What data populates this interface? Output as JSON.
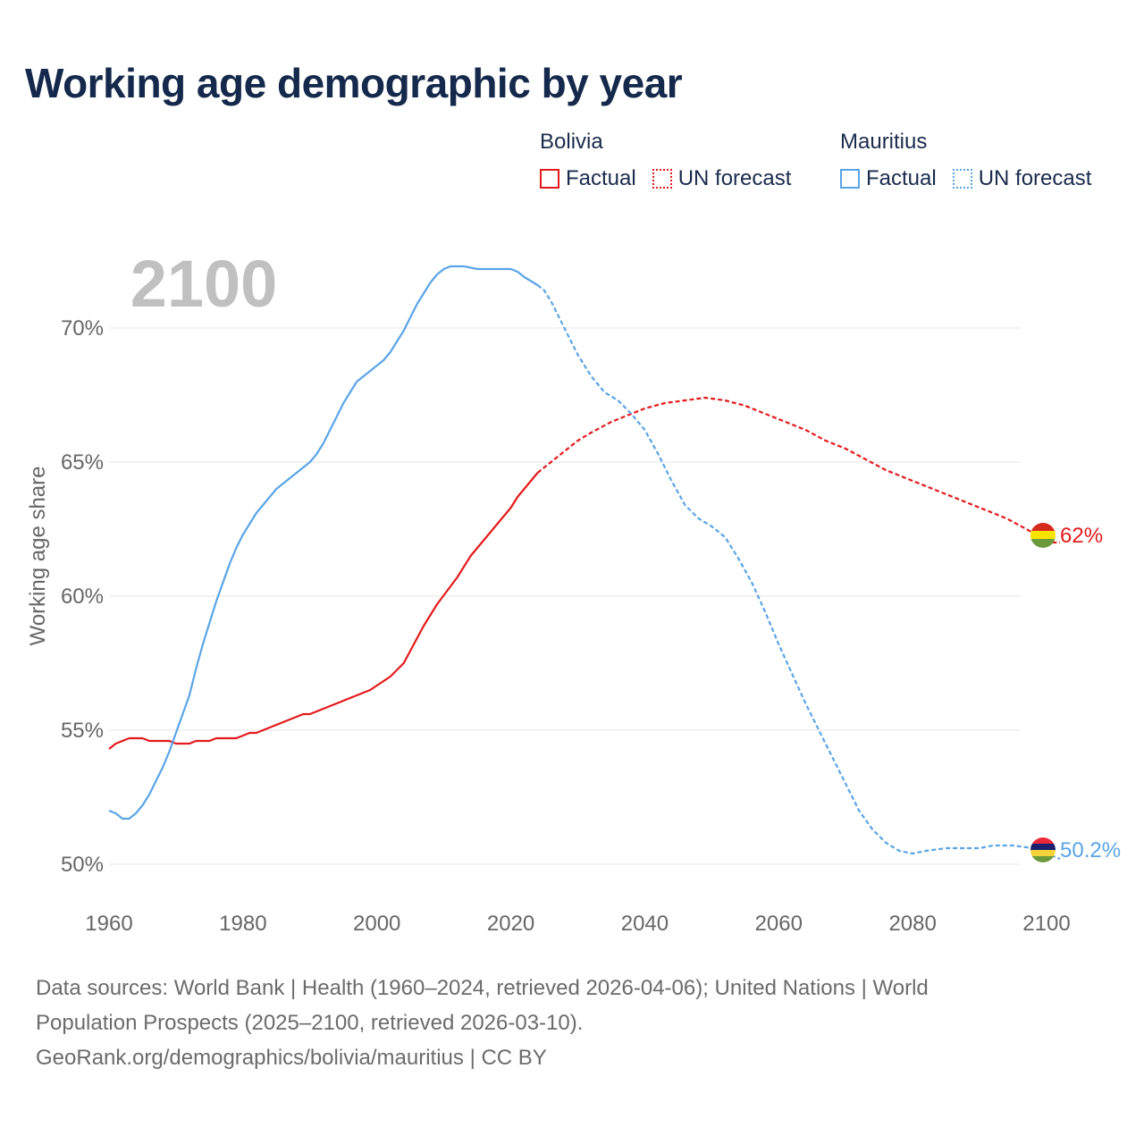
{
  "title": "Working age demographic by year",
  "legend": {
    "groups": [
      {
        "name": "Bolivia",
        "color": "#e31a1c",
        "factual_label": "Factual",
        "forecast_label": "UN forecast"
      },
      {
        "name": "Mauritius",
        "color": "#5aa5e6",
        "factual_label": "Factual",
        "forecast_label": "UN forecast"
      }
    ]
  },
  "chart_data": {
    "type": "line",
    "title": "Working age demographic by year",
    "xlabel": "",
    "ylabel": "Working age share",
    "year_watermark": "2100",
    "xlim": [
      1960,
      2100
    ],
    "ylim": [
      49.5,
      72.5
    ],
    "x_ticks": [
      1960,
      1980,
      2000,
      2020,
      2040,
      2060,
      2080,
      2100
    ],
    "x_tick_labels": [
      "1960",
      "1980",
      "2000",
      "2020",
      "2040",
      "2060",
      "2080",
      "2100"
    ],
    "y_ticks": [
      50,
      55,
      60,
      65,
      70
    ],
    "y_tick_labels": [
      "50%",
      "55%",
      "60%",
      "65%",
      "70%"
    ],
    "grid": true,
    "factual_end_year": 2024,
    "series": [
      {
        "name": "Bolivia",
        "color": "#e31a1c",
        "end_label": "62%",
        "flag": "bolivia",
        "points": [
          [
            1960,
            54.3
          ],
          [
            1961,
            54.5
          ],
          [
            1962,
            54.6
          ],
          [
            1963,
            54.7
          ],
          [
            1965,
            54.7
          ],
          [
            1966,
            54.6
          ],
          [
            1969,
            54.6
          ],
          [
            1970,
            54.5
          ],
          [
            1972,
            54.5
          ],
          [
            1973,
            54.6
          ],
          [
            1975,
            54.6
          ],
          [
            1976,
            54.7
          ],
          [
            1979,
            54.7
          ],
          [
            1981,
            54.9
          ],
          [
            1982,
            54.9
          ],
          [
            1985,
            55.2
          ],
          [
            1989,
            55.6
          ],
          [
            1990,
            55.6
          ],
          [
            1993,
            55.9
          ],
          [
            1996,
            56.2
          ],
          [
            1999,
            56.5
          ],
          [
            2002,
            57.0
          ],
          [
            2004,
            57.5
          ],
          [
            2007,
            58.9
          ],
          [
            2009,
            59.7
          ],
          [
            2012,
            60.7
          ],
          [
            2014,
            61.5
          ],
          [
            2017,
            62.4
          ],
          [
            2020,
            63.3
          ],
          [
            2021,
            63.7
          ],
          [
            2024,
            64.6
          ],
          [
            2026,
            65.0
          ],
          [
            2028,
            65.4
          ],
          [
            2030,
            65.8
          ],
          [
            2032,
            66.1
          ],
          [
            2035,
            66.5
          ],
          [
            2038,
            66.8
          ],
          [
            2040,
            67.0
          ],
          [
            2043,
            67.2
          ],
          [
            2046,
            67.3
          ],
          [
            2049,
            67.4
          ],
          [
            2052,
            67.3
          ],
          [
            2055,
            67.1
          ],
          [
            2058,
            66.8
          ],
          [
            2061,
            66.5
          ],
          [
            2064,
            66.2
          ],
          [
            2067,
            65.8
          ],
          [
            2070,
            65.5
          ],
          [
            2073,
            65.1
          ],
          [
            2076,
            64.7
          ],
          [
            2079,
            64.4
          ],
          [
            2082,
            64.1
          ],
          [
            2085,
            63.8
          ],
          [
            2088,
            63.5
          ],
          [
            2091,
            63.2
          ],
          [
            2094,
            62.9
          ],
          [
            2097,
            62.5
          ],
          [
            2099,
            62.2
          ],
          [
            2101,
            62.0
          ],
          [
            2102,
            62.0
          ]
        ]
      },
      {
        "name": "Mauritius",
        "color": "#5aa5e6",
        "end_label": "50.2%",
        "flag": "mauritius",
        "points": [
          [
            1960,
            52.0
          ],
          [
            1961,
            51.9
          ],
          [
            1962,
            51.7
          ],
          [
            1963,
            51.7
          ],
          [
            1964,
            51.9
          ],
          [
            1965,
            52.2
          ],
          [
            1966,
            52.6
          ],
          [
            1967,
            53.1
          ],
          [
            1968,
            53.6
          ],
          [
            1969,
            54.2
          ],
          [
            1970,
            54.9
          ],
          [
            1971,
            55.6
          ],
          [
            1972,
            56.3
          ],
          [
            1973,
            57.3
          ],
          [
            1974,
            58.2
          ],
          [
            1975,
            59.0
          ],
          [
            1976,
            59.8
          ],
          [
            1977,
            60.5
          ],
          [
            1978,
            61.2
          ],
          [
            1979,
            61.8
          ],
          [
            1980,
            62.3
          ],
          [
            1981,
            62.7
          ],
          [
            1982,
            63.1
          ],
          [
            1983,
            63.4
          ],
          [
            1984,
            63.7
          ],
          [
            1985,
            64.0
          ],
          [
            1986,
            64.2
          ],
          [
            1988,
            64.6
          ],
          [
            1990,
            65.0
          ],
          [
            1991,
            65.3
          ],
          [
            1992,
            65.7
          ],
          [
            1993,
            66.2
          ],
          [
            1994,
            66.7
          ],
          [
            1995,
            67.2
          ],
          [
            1996,
            67.6
          ],
          [
            1997,
            68.0
          ],
          [
            1999,
            68.4
          ],
          [
            2001,
            68.8
          ],
          [
            2002,
            69.1
          ],
          [
            2003,
            69.5
          ],
          [
            2004,
            69.9
          ],
          [
            2005,
            70.4
          ],
          [
            2006,
            70.9
          ],
          [
            2007,
            71.3
          ],
          [
            2008,
            71.7
          ],
          [
            2009,
            72.0
          ],
          [
            2010,
            72.2
          ],
          [
            2011,
            72.3
          ],
          [
            2012,
            72.3
          ],
          [
            2013,
            72.3
          ],
          [
            2015,
            72.2
          ],
          [
            2016,
            72.2
          ],
          [
            2020,
            72.2
          ],
          [
            2021,
            72.1
          ],
          [
            2022,
            71.9
          ],
          [
            2024,
            71.6
          ],
          [
            2025,
            71.4
          ],
          [
            2026,
            71.0
          ],
          [
            2027,
            70.5
          ],
          [
            2028,
            70.0
          ],
          [
            2029,
            69.5
          ],
          [
            2030,
            69.0
          ],
          [
            2031,
            68.6
          ],
          [
            2032,
            68.2
          ],
          [
            2033,
            67.9
          ],
          [
            2034,
            67.6
          ],
          [
            2036,
            67.3
          ],
          [
            2038,
            66.8
          ],
          [
            2040,
            66.2
          ],
          [
            2042,
            65.3
          ],
          [
            2044,
            64.3
          ],
          [
            2046,
            63.4
          ],
          [
            2048,
            62.9
          ],
          [
            2050,
            62.6
          ],
          [
            2052,
            62.2
          ],
          [
            2054,
            61.4
          ],
          [
            2056,
            60.5
          ],
          [
            2058,
            59.4
          ],
          [
            2060,
            58.2
          ],
          [
            2062,
            57.1
          ],
          [
            2064,
            56.0
          ],
          [
            2066,
            55.0
          ],
          [
            2068,
            54.0
          ],
          [
            2070,
            53.0
          ],
          [
            2072,
            52.0
          ],
          [
            2074,
            51.3
          ],
          [
            2076,
            50.8
          ],
          [
            2078,
            50.5
          ],
          [
            2080,
            50.4
          ],
          [
            2082,
            50.5
          ],
          [
            2085,
            50.6
          ],
          [
            2088,
            50.6
          ],
          [
            2090,
            50.6
          ],
          [
            2092,
            50.7
          ],
          [
            2095,
            50.7
          ],
          [
            2098,
            50.6
          ],
          [
            2100,
            50.4
          ],
          [
            2102,
            50.2
          ]
        ]
      }
    ]
  },
  "footer": {
    "line1": "Data sources: World Bank | Health (1960–2024, retrieved 2026-04-06); United Nations | World",
    "line2": "Population Prospects (2025–2100, retrieved 2026-03-10).",
    "line3": "GeoRank.org/demographics/bolivia/mauritius | CC BY"
  }
}
